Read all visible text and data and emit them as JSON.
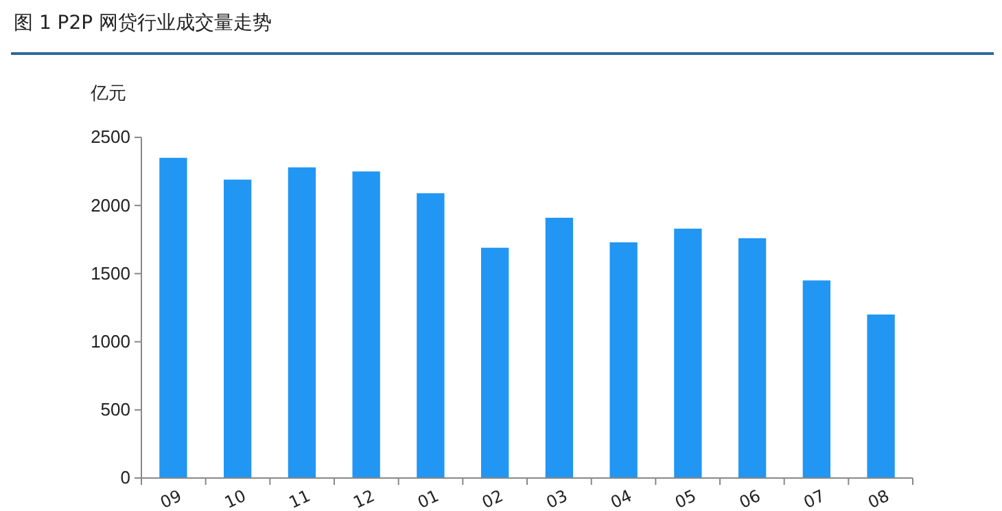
{
  "chart_data": {
    "type": "bar",
    "title": "图 1   P2P 网贷行业成交量走势",
    "ylabel": "亿元",
    "categories": [
      "09",
      "10",
      "11",
      "12",
      "01",
      "02",
      "03",
      "04",
      "05",
      "06",
      "07",
      "08"
    ],
    "values": [
      2350,
      2190,
      2280,
      2250,
      2090,
      1690,
      1910,
      1730,
      1830,
      1760,
      1450,
      1200
    ],
    "color": "#2196f3",
    "ylim": [
      0,
      2500
    ],
    "yticks": [
      0,
      500,
      1000,
      1500,
      2000,
      2500
    ],
    "grid": false
  }
}
